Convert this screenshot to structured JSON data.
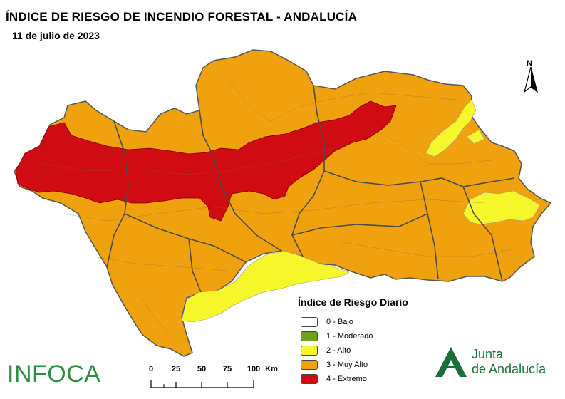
{
  "title": "ÍNDICE DE RIESGO DE INCENDIO FORESTAL - ANDALUCÍA",
  "date": "11 de julio de 2023",
  "north_label": "N",
  "legend": {
    "title": "Índice de Riesgo Diario",
    "items": [
      {
        "label": "0 - Bajo",
        "color": "#ffffff"
      },
      {
        "label": "1 - Moderado",
        "color": "#6aa518"
      },
      {
        "label": "2 - Alto",
        "color": "#f6f72b"
      },
      {
        "label": "3 - Muy Alto",
        "color": "#f0a20e"
      },
      {
        "label": "4 - Extremo",
        "color": "#d10b12"
      }
    ]
  },
  "scale": {
    "ticks": [
      "0",
      "25",
      "50",
      "75",
      "100"
    ],
    "unit": "Km"
  },
  "branding": {
    "infoca": "INFOCA",
    "junta_line1": "Junta",
    "junta_line2": "de Andalucía"
  },
  "colors": {
    "region_fill": "#f0a20e",
    "extreme": "#d10b12",
    "high": "#f6f72b",
    "border": "#4a4a4a"
  }
}
